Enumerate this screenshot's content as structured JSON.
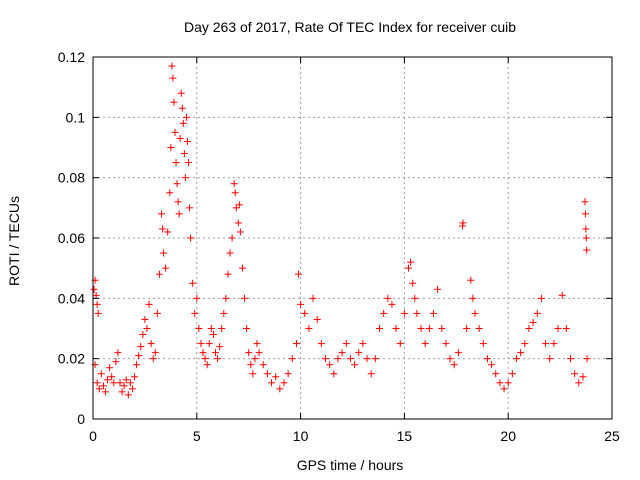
{
  "chart_data": {
    "type": "scatter",
    "title": "Day 263 of 2017, Rate Of TEC Index for receiver cuib",
    "xlabel": "GPS time / hours",
    "ylabel": "ROTI / TECUs",
    "xlim": [
      0,
      25
    ],
    "ylim": [
      0,
      0.12
    ],
    "xticks": [
      0,
      5,
      10,
      15,
      20,
      25
    ],
    "yticks": [
      0,
      0.02,
      0.04,
      0.06,
      0.08,
      0.1,
      0.12
    ],
    "grid": true,
    "marker": "+",
    "series": [
      {
        "color": "#ff0000",
        "points": [
          [
            0.05,
            0.043
          ],
          [
            0.1,
            0.046
          ],
          [
            0.15,
            0.041
          ],
          [
            0.2,
            0.038
          ],
          [
            0.25,
            0.035
          ],
          [
            0.1,
            0.018
          ],
          [
            0.2,
            0.012
          ],
          [
            0.3,
            0.01
          ],
          [
            0.4,
            0.015
          ],
          [
            0.5,
            0.011
          ],
          [
            0.6,
            0.009
          ],
          [
            0.7,
            0.013
          ],
          [
            0.8,
            0.017
          ],
          [
            0.9,
            0.014
          ],
          [
            1.0,
            0.012
          ],
          [
            1.1,
            0.019
          ],
          [
            1.2,
            0.022
          ],
          [
            1.3,
            0.012
          ],
          [
            1.4,
            0.009
          ],
          [
            1.5,
            0.011
          ],
          [
            1.6,
            0.013
          ],
          [
            1.7,
            0.008
          ],
          [
            1.8,
            0.012
          ],
          [
            1.9,
            0.01
          ],
          [
            2.0,
            0.014
          ],
          [
            2.1,
            0.018
          ],
          [
            2.2,
            0.021
          ],
          [
            2.3,
            0.024
          ],
          [
            2.4,
            0.028
          ],
          [
            2.5,
            0.033
          ],
          [
            2.6,
            0.03
          ],
          [
            2.7,
            0.038
          ],
          [
            2.8,
            0.025
          ],
          [
            2.9,
            0.02
          ],
          [
            3.0,
            0.022
          ],
          [
            3.1,
            0.035
          ],
          [
            3.2,
            0.048
          ],
          [
            3.3,
            0.068
          ],
          [
            3.35,
            0.063
          ],
          [
            3.4,
            0.055
          ],
          [
            3.5,
            0.05
          ],
          [
            3.6,
            0.062
          ],
          [
            3.7,
            0.075
          ],
          [
            3.75,
            0.09
          ],
          [
            3.8,
            0.117
          ],
          [
            3.85,
            0.113
          ],
          [
            3.9,
            0.105
          ],
          [
            3.95,
            0.095
          ],
          [
            4.0,
            0.085
          ],
          [
            4.05,
            0.078
          ],
          [
            4.1,
            0.072
          ],
          [
            4.15,
            0.068
          ],
          [
            4.2,
            0.093
          ],
          [
            4.25,
            0.108
          ],
          [
            4.3,
            0.103
          ],
          [
            4.35,
            0.098
          ],
          [
            4.4,
            0.088
          ],
          [
            4.45,
            0.08
          ],
          [
            4.5,
            0.1
          ],
          [
            4.55,
            0.092
          ],
          [
            4.6,
            0.085
          ],
          [
            4.65,
            0.07
          ],
          [
            4.7,
            0.06
          ],
          [
            4.8,
            0.045
          ],
          [
            4.9,
            0.035
          ],
          [
            5.0,
            0.04
          ],
          [
            5.1,
            0.03
          ],
          [
            5.2,
            0.025
          ],
          [
            5.3,
            0.022
          ],
          [
            5.4,
            0.02
          ],
          [
            5.5,
            0.018
          ],
          [
            5.6,
            0.025
          ],
          [
            5.7,
            0.03
          ],
          [
            5.8,
            0.028
          ],
          [
            5.9,
            0.022
          ],
          [
            6.0,
            0.02
          ],
          [
            6.1,
            0.024
          ],
          [
            6.2,
            0.03
          ],
          [
            6.3,
            0.035
          ],
          [
            6.4,
            0.04
          ],
          [
            6.5,
            0.048
          ],
          [
            6.6,
            0.055
          ],
          [
            6.7,
            0.06
          ],
          [
            6.8,
            0.078
          ],
          [
            6.85,
            0.075
          ],
          [
            6.9,
            0.07
          ],
          [
            7.0,
            0.065
          ],
          [
            7.05,
            0.071
          ],
          [
            7.1,
            0.062
          ],
          [
            7.2,
            0.05
          ],
          [
            7.3,
            0.04
          ],
          [
            7.4,
            0.03
          ],
          [
            7.5,
            0.022
          ],
          [
            7.6,
            0.018
          ],
          [
            7.7,
            0.015
          ],
          [
            7.8,
            0.02
          ],
          [
            7.9,
            0.025
          ],
          [
            8.0,
            0.022
          ],
          [
            8.2,
            0.018
          ],
          [
            8.4,
            0.015
          ],
          [
            8.6,
            0.012
          ],
          [
            8.8,
            0.014
          ],
          [
            9.0,
            0.01
          ],
          [
            9.2,
            0.012
          ],
          [
            9.4,
            0.015
          ],
          [
            9.6,
            0.02
          ],
          [
            9.8,
            0.025
          ],
          [
            9.9,
            0.048
          ],
          [
            10.0,
            0.038
          ],
          [
            10.2,
            0.035
          ],
          [
            10.4,
            0.03
          ],
          [
            10.6,
            0.04
          ],
          [
            10.8,
            0.033
          ],
          [
            11.0,
            0.025
          ],
          [
            11.2,
            0.02
          ],
          [
            11.4,
            0.018
          ],
          [
            11.6,
            0.015
          ],
          [
            11.8,
            0.02
          ],
          [
            12.0,
            0.022
          ],
          [
            12.2,
            0.025
          ],
          [
            12.4,
            0.02
          ],
          [
            12.6,
            0.018
          ],
          [
            12.8,
            0.022
          ],
          [
            13.0,
            0.025
          ],
          [
            13.2,
            0.02
          ],
          [
            13.4,
            0.015
          ],
          [
            13.6,
            0.02
          ],
          [
            13.8,
            0.03
          ],
          [
            14.0,
            0.035
          ],
          [
            14.2,
            0.04
          ],
          [
            14.4,
            0.038
          ],
          [
            14.6,
            0.03
          ],
          [
            14.8,
            0.025
          ],
          [
            15.0,
            0.035
          ],
          [
            15.2,
            0.05
          ],
          [
            15.3,
            0.052
          ],
          [
            15.4,
            0.045
          ],
          [
            15.5,
            0.04
          ],
          [
            15.6,
            0.035
          ],
          [
            15.8,
            0.03
          ],
          [
            16.0,
            0.025
          ],
          [
            16.2,
            0.03
          ],
          [
            16.4,
            0.035
          ],
          [
            16.6,
            0.043
          ],
          [
            16.8,
            0.03
          ],
          [
            17.0,
            0.025
          ],
          [
            17.2,
            0.02
          ],
          [
            17.4,
            0.018
          ],
          [
            17.6,
            0.022
          ],
          [
            17.8,
            0.064
          ],
          [
            17.82,
            0.065
          ],
          [
            18.0,
            0.03
          ],
          [
            18.2,
            0.046
          ],
          [
            18.3,
            0.04
          ],
          [
            18.4,
            0.035
          ],
          [
            18.6,
            0.03
          ],
          [
            18.8,
            0.025
          ],
          [
            19.0,
            0.02
          ],
          [
            19.2,
            0.018
          ],
          [
            19.4,
            0.015
          ],
          [
            19.6,
            0.012
          ],
          [
            19.8,
            0.01
          ],
          [
            20.0,
            0.012
          ],
          [
            20.2,
            0.015
          ],
          [
            20.4,
            0.02
          ],
          [
            20.6,
            0.022
          ],
          [
            20.8,
            0.025
          ],
          [
            21.0,
            0.03
          ],
          [
            21.2,
            0.032
          ],
          [
            21.4,
            0.035
          ],
          [
            21.6,
            0.04
          ],
          [
            21.8,
            0.025
          ],
          [
            22.0,
            0.02
          ],
          [
            22.2,
            0.025
          ],
          [
            22.4,
            0.03
          ],
          [
            22.6,
            0.041
          ],
          [
            22.8,
            0.03
          ],
          [
            23.0,
            0.02
          ],
          [
            23.2,
            0.015
          ],
          [
            23.4,
            0.012
          ],
          [
            23.6,
            0.014
          ],
          [
            23.7,
            0.072
          ],
          [
            23.72,
            0.068
          ],
          [
            23.74,
            0.063
          ],
          [
            23.76,
            0.06
          ],
          [
            23.78,
            0.056
          ],
          [
            23.8,
            0.02
          ]
        ]
      }
    ]
  },
  "colors": {
    "series": "#ff0000",
    "grid": "#a0a0a0",
    "axis": "#000000",
    "background": "#ffffff"
  }
}
